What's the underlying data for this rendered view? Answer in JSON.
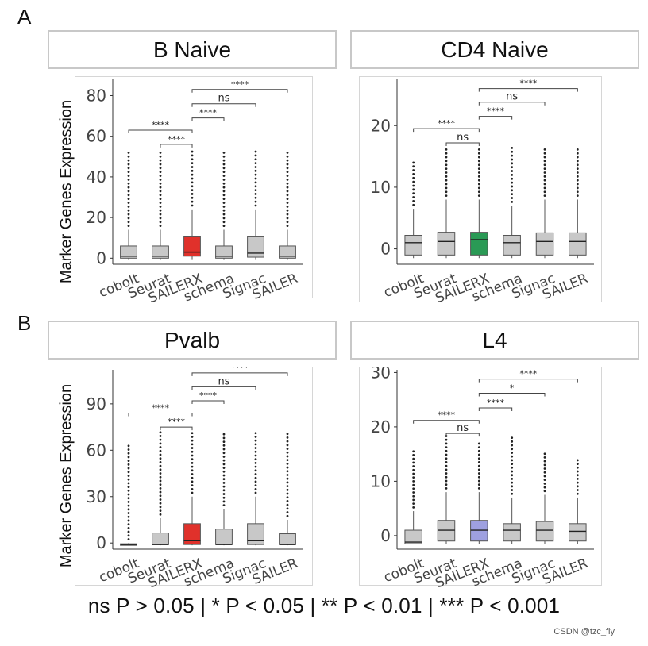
{
  "sections": [
    {
      "letter": "A",
      "ylabel": "Marker Genes Expression"
    },
    {
      "letter": "B",
      "ylabel": "Marker Genes Expression"
    }
  ],
  "legend": "ns P > 0.05 | * P < 0.05 | ** P <  0.01 | *** P < 0.001",
  "watermark": "CSDN @tzc_fly",
  "chart_data": [
    {
      "type": "box",
      "title": "B Naive",
      "ylabel": "Marker Genes Expression",
      "ylim": [
        -3,
        88
      ],
      "yticks": [
        0,
        20,
        40,
        60,
        80
      ],
      "categories": [
        "cobolt",
        "Seurat",
        "SAILERX",
        "schema",
        "Signac",
        "SAILER"
      ],
      "highlight": "SAILERX",
      "highlight_color": "#e0312b",
      "box_color": "#c8c8c8",
      "boxes": [
        {
          "q1": 0,
          "median": 1,
          "q3": 6,
          "whisker_low": -0.5,
          "whisker_high": 14,
          "outlier_max": 53
        },
        {
          "q1": 0,
          "median": 1,
          "q3": 6,
          "whisker_low": -0.5,
          "whisker_high": 14,
          "outlier_max": 53
        },
        {
          "q1": 1,
          "median": 3,
          "q3": 10.5,
          "whisker_low": -0.5,
          "whisker_high": 24,
          "outlier_max": 53
        },
        {
          "q1": 0,
          "median": 1,
          "q3": 6,
          "whisker_low": -0.5,
          "whisker_high": 14,
          "outlier_max": 53
        },
        {
          "q1": 0.5,
          "median": 2.5,
          "q3": 10.5,
          "whisker_low": -0.5,
          "whisker_high": 24,
          "outlier_max": 53
        },
        {
          "q1": 0,
          "median": 1,
          "q3": 6,
          "whisker_low": -0.5,
          "whisker_high": 14,
          "outlier_max": 53
        }
      ],
      "comparisons": [
        {
          "from": "cobolt",
          "to": "SAILERX",
          "label": "****",
          "level": 63
        },
        {
          "from": "Seurat",
          "to": "SAILERX",
          "label": "****",
          "level": 56
        },
        {
          "from": "SAILERX",
          "to": "schema",
          "label": "****",
          "level": 69
        },
        {
          "from": "SAILERX",
          "to": "Signac",
          "label": "ns",
          "level": 76
        },
        {
          "from": "SAILERX",
          "to": "SAILER",
          "label": "****",
          "level": 83
        }
      ]
    },
    {
      "type": "box",
      "title": "CD4 Naive",
      "ylabel": "",
      "ylim": [
        -2.5,
        27.5
      ],
      "yticks": [
        0,
        10,
        20
      ],
      "categories": [
        "cobolt",
        "Seurat",
        "SAILERX",
        "schema",
        "Signac",
        "SAILER"
      ],
      "highlight": "SAILERX",
      "highlight_color": "#2a9a55",
      "box_color": "#c8c8c8",
      "boxes": [
        {
          "q1": -1,
          "median": 1,
          "q3": 2.2,
          "whisker_low": -1.5,
          "whisker_high": 6.5,
          "outlier_max": 14
        },
        {
          "q1": -1,
          "median": 1.2,
          "q3": 2.7,
          "whisker_low": -1.5,
          "whisker_high": 8,
          "outlier_max": 16.5
        },
        {
          "q1": -1,
          "median": 1.5,
          "q3": 2.7,
          "whisker_low": -1.5,
          "whisker_high": 8,
          "outlier_max": 16.5
        },
        {
          "q1": -1,
          "median": 1,
          "q3": 2.2,
          "whisker_low": -1.5,
          "whisker_high": 7,
          "outlier_max": 16.5
        },
        {
          "q1": -1,
          "median": 1.2,
          "q3": 2.6,
          "whisker_low": -1.5,
          "whisker_high": 8,
          "outlier_max": 16.5
        },
        {
          "q1": -1,
          "median": 1.2,
          "q3": 2.6,
          "whisker_low": -1.5,
          "whisker_high": 8,
          "outlier_max": 16.5
        }
      ],
      "comparisons": [
        {
          "from": "cobolt",
          "to": "SAILERX",
          "label": "****",
          "level": 19.5
        },
        {
          "from": "Seurat",
          "to": "SAILERX",
          "label": "ns",
          "level": 17.2
        },
        {
          "from": "SAILERX",
          "to": "schema",
          "label": "****",
          "level": 21.5
        },
        {
          "from": "SAILERX",
          "to": "Signac",
          "label": "ns",
          "level": 23.8
        },
        {
          "from": "SAILERX",
          "to": "SAILER",
          "label": "****",
          "level": 26
        }
      ]
    },
    {
      "type": "box",
      "title": "Pvalb",
      "ylabel": "Marker Genes Expression",
      "ylim": [
        -4,
        112
      ],
      "yticks": [
        0,
        30,
        60,
        90
      ],
      "categories": [
        "cobolt",
        "Seurat",
        "SAILERX",
        "schema",
        "Signac",
        "SAILER"
      ],
      "highlight": "SAILERX",
      "highlight_color": "#e0312b",
      "box_color": "#c8c8c8",
      "boxes": [
        {
          "q1": -1.5,
          "median": -1,
          "q3": -0.5,
          "whisker_low": -1.5,
          "whisker_high": 0,
          "outlier_max": 64
        },
        {
          "q1": -1,
          "median": -1,
          "q3": 6.5,
          "whisker_low": -1.5,
          "whisker_high": 16,
          "outlier_max": 72
        },
        {
          "q1": -1,
          "median": 1.5,
          "q3": 12.5,
          "whisker_low": -1.5,
          "whisker_high": 30,
          "outlier_max": 72
        },
        {
          "q1": -1,
          "median": -1,
          "q3": 9,
          "whisker_low": -1.5,
          "whisker_high": 22,
          "outlier_max": 72
        },
        {
          "q1": -1,
          "median": 1.5,
          "q3": 12.5,
          "whisker_low": -1.5,
          "whisker_high": 30,
          "outlier_max": 72
        },
        {
          "q1": -1,
          "median": -1,
          "q3": 6,
          "whisker_low": -1.5,
          "whisker_high": 15,
          "outlier_max": 72
        }
      ],
      "comparisons": [
        {
          "from": "cobolt",
          "to": "SAILERX",
          "label": "****",
          "level": 84
        },
        {
          "from": "Seurat",
          "to": "SAILERX",
          "label": "****",
          "level": 75
        },
        {
          "from": "SAILERX",
          "to": "schema",
          "label": "****",
          "level": 92
        },
        {
          "from": "SAILERX",
          "to": "Signac",
          "label": "ns",
          "level": 101
        },
        {
          "from": "SAILERX",
          "to": "SAILER",
          "label": "****",
          "level": 110
        }
      ]
    },
    {
      "type": "box",
      "title": "L4",
      "ylabel": "",
      "ylim": [
        -2.5,
        30.5
      ],
      "yticks": [
        0,
        10,
        20,
        30
      ],
      "categories": [
        "cobolt",
        "Seurat",
        "SAILERX",
        "schema",
        "Signac",
        "SAILER"
      ],
      "highlight": "SAILERX",
      "highlight_color": "#9ea0e0",
      "box_color": "#c8c8c8",
      "boxes": [
        {
          "q1": -1.5,
          "median": -1.2,
          "q3": 1,
          "whisker_low": -1.5,
          "whisker_high": 4.5,
          "outlier_max": 15.5
        },
        {
          "q1": -1,
          "median": 1,
          "q3": 2.8,
          "whisker_low": -1.5,
          "whisker_high": 8,
          "outlier_max": 18.5
        },
        {
          "q1": -1,
          "median": 1,
          "q3": 2.8,
          "whisker_low": -1.5,
          "whisker_high": 8,
          "outlier_max": 17
        },
        {
          "q1": -1,
          "median": 1,
          "q3": 2.2,
          "whisker_low": -1.5,
          "whisker_high": 7,
          "outlier_max": 18.5
        },
        {
          "q1": -1,
          "median": 1,
          "q3": 2.6,
          "whisker_low": -1.5,
          "whisker_high": 7.5,
          "outlier_max": 15.5
        },
        {
          "q1": -1,
          "median": 0.8,
          "q3": 2.2,
          "whisker_low": -1.5,
          "whisker_high": 7,
          "outlier_max": 14.5
        }
      ],
      "comparisons": [
        {
          "from": "cobolt",
          "to": "SAILERX",
          "label": "****",
          "level": 21.2
        },
        {
          "from": "Seurat",
          "to": "SAILERX",
          "label": "ns",
          "level": 18.8
        },
        {
          "from": "SAILERX",
          "to": "schema",
          "label": "****",
          "level": 23.5
        },
        {
          "from": "SAILERX",
          "to": "Signac",
          "label": "*",
          "level": 26.2
        },
        {
          "from": "SAILERX",
          "to": "SAILER",
          "label": "****",
          "level": 28.8
        }
      ]
    }
  ]
}
